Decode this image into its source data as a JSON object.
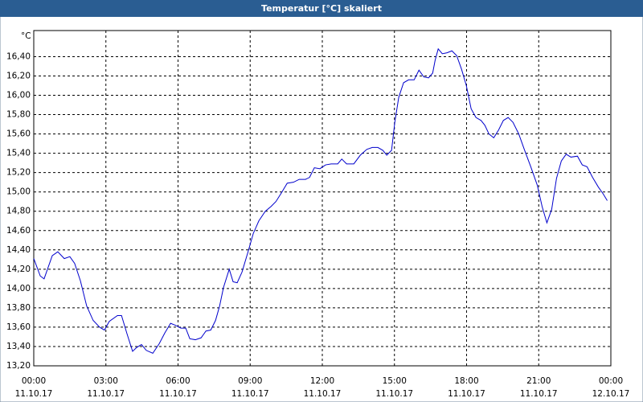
{
  "chart_data": {
    "type": "line",
    "title": "Temperatur [°C] skaliert",
    "y_unit": "°C",
    "xlim": [
      0,
      24
    ],
    "xticks": [
      {
        "value": 0,
        "label": "00:00"
      },
      {
        "value": 3,
        "label": "03:00"
      },
      {
        "value": 6,
        "label": "06:00"
      },
      {
        "value": 9,
        "label": "09:00"
      },
      {
        "value": 12,
        "label": "12:00"
      },
      {
        "value": 15,
        "label": "15:00"
      },
      {
        "value": 18,
        "label": "18:00"
      },
      {
        "value": 21,
        "label": "21:00"
      },
      {
        "value": 24,
        "label": "00:00"
      }
    ],
    "xtick_dates": [
      "11.10.17",
      "11.10.17",
      "11.10.17",
      "11.10.17",
      "11.10.17",
      "11.10.17",
      "11.10.17",
      "11.10.17",
      "12.10.17"
    ],
    "ylim": [
      13.2,
      16.67
    ],
    "yticks": [
      {
        "value": 13.2,
        "label": "13,20"
      },
      {
        "value": 13.4,
        "label": "13,40"
      },
      {
        "value": 13.6,
        "label": "13,60"
      },
      {
        "value": 13.8,
        "label": "13,80"
      },
      {
        "value": 14.0,
        "label": "14,00"
      },
      {
        "value": 14.2,
        "label": "14,20"
      },
      {
        "value": 14.4,
        "label": "14,40"
      },
      {
        "value": 14.6,
        "label": "14,60"
      },
      {
        "value": 14.8,
        "label": "14,80"
      },
      {
        "value": 15.0,
        "label": "15,00"
      },
      {
        "value": 15.2,
        "label": "15,20"
      },
      {
        "value": 15.4,
        "label": "15,40"
      },
      {
        "value": 15.6,
        "label": "15,60"
      },
      {
        "value": 15.8,
        "label": "15,80"
      },
      {
        "value": 16.0,
        "label": "16,00"
      },
      {
        "value": 16.2,
        "label": "16,20"
      },
      {
        "value": 16.4,
        "label": "16,40"
      }
    ],
    "grid": true,
    "color": "#0000cc",
    "x": [
      0,
      0.27,
      0.43,
      0.77,
      1.0,
      1.27,
      1.5,
      1.7,
      1.94,
      2.2,
      2.47,
      2.74,
      2.94,
      3.14,
      3.48,
      3.65,
      3.88,
      4.11,
      4.28,
      4.48,
      4.68,
      4.95,
      5.22,
      5.45,
      5.69,
      5.89,
      6.12,
      6.32,
      6.49,
      6.72,
      6.96,
      7.16,
      7.36,
      7.56,
      7.73,
      7.89,
      8.13,
      8.29,
      8.46,
      8.66,
      8.9,
      9.13,
      9.36,
      9.63,
      9.87,
      10.07,
      10.3,
      10.54,
      10.8,
      11.04,
      11.3,
      11.47,
      11.67,
      11.9,
      12.14,
      12.37,
      12.64,
      12.81,
      13.01,
      13.31,
      13.58,
      13.85,
      14.08,
      14.31,
      14.52,
      14.68,
      14.88,
      15.02,
      15.18,
      15.38,
      15.59,
      15.82,
      16.02,
      16.22,
      16.42,
      16.59,
      16.69,
      16.82,
      16.99,
      17.19,
      17.39,
      17.59,
      17.79,
      17.99,
      18.19,
      18.39,
      18.6,
      18.76,
      18.93,
      19.13,
      19.33,
      19.53,
      19.73,
      19.93,
      20.17,
      20.4,
      20.67,
      20.94,
      21.14,
      21.34,
      21.54,
      21.74,
      21.94,
      22.14,
      22.34,
      22.61,
      22.81,
      23.01,
      23.24,
      23.48,
      23.68,
      23.85
    ],
    "values": [
      14.31,
      14.13,
      14.1,
      14.34,
      14.38,
      14.31,
      14.33,
      14.26,
      14.08,
      13.82,
      13.67,
      13.6,
      13.57,
      13.66,
      13.72,
      13.72,
      13.53,
      13.35,
      13.39,
      13.42,
      13.36,
      13.33,
      13.43,
      13.54,
      13.64,
      13.62,
      13.59,
      13.59,
      13.48,
      13.47,
      13.49,
      13.56,
      13.57,
      13.67,
      13.82,
      14.01,
      14.2,
      14.07,
      14.06,
      14.17,
      14.37,
      14.57,
      14.7,
      14.8,
      14.85,
      14.9,
      14.99,
      15.09,
      15.1,
      15.13,
      15.13,
      15.15,
      15.25,
      15.24,
      15.28,
      15.29,
      15.29,
      15.34,
      15.29,
      15.29,
      15.38,
      15.44,
      15.46,
      15.46,
      15.43,
      15.38,
      15.43,
      15.73,
      15.98,
      16.13,
      16.16,
      16.16,
      16.26,
      16.19,
      16.18,
      16.23,
      16.36,
      16.48,
      16.43,
      16.44,
      16.46,
      16.41,
      16.27,
      16.1,
      15.86,
      15.77,
      15.74,
      15.69,
      15.6,
      15.56,
      15.64,
      15.74,
      15.77,
      15.72,
      15.6,
      15.44,
      15.26,
      15.07,
      14.85,
      14.68,
      14.82,
      15.14,
      15.32,
      15.39,
      15.36,
      15.37,
      15.28,
      15.26,
      15.15,
      15.05,
      14.98,
      14.91
    ]
  }
}
